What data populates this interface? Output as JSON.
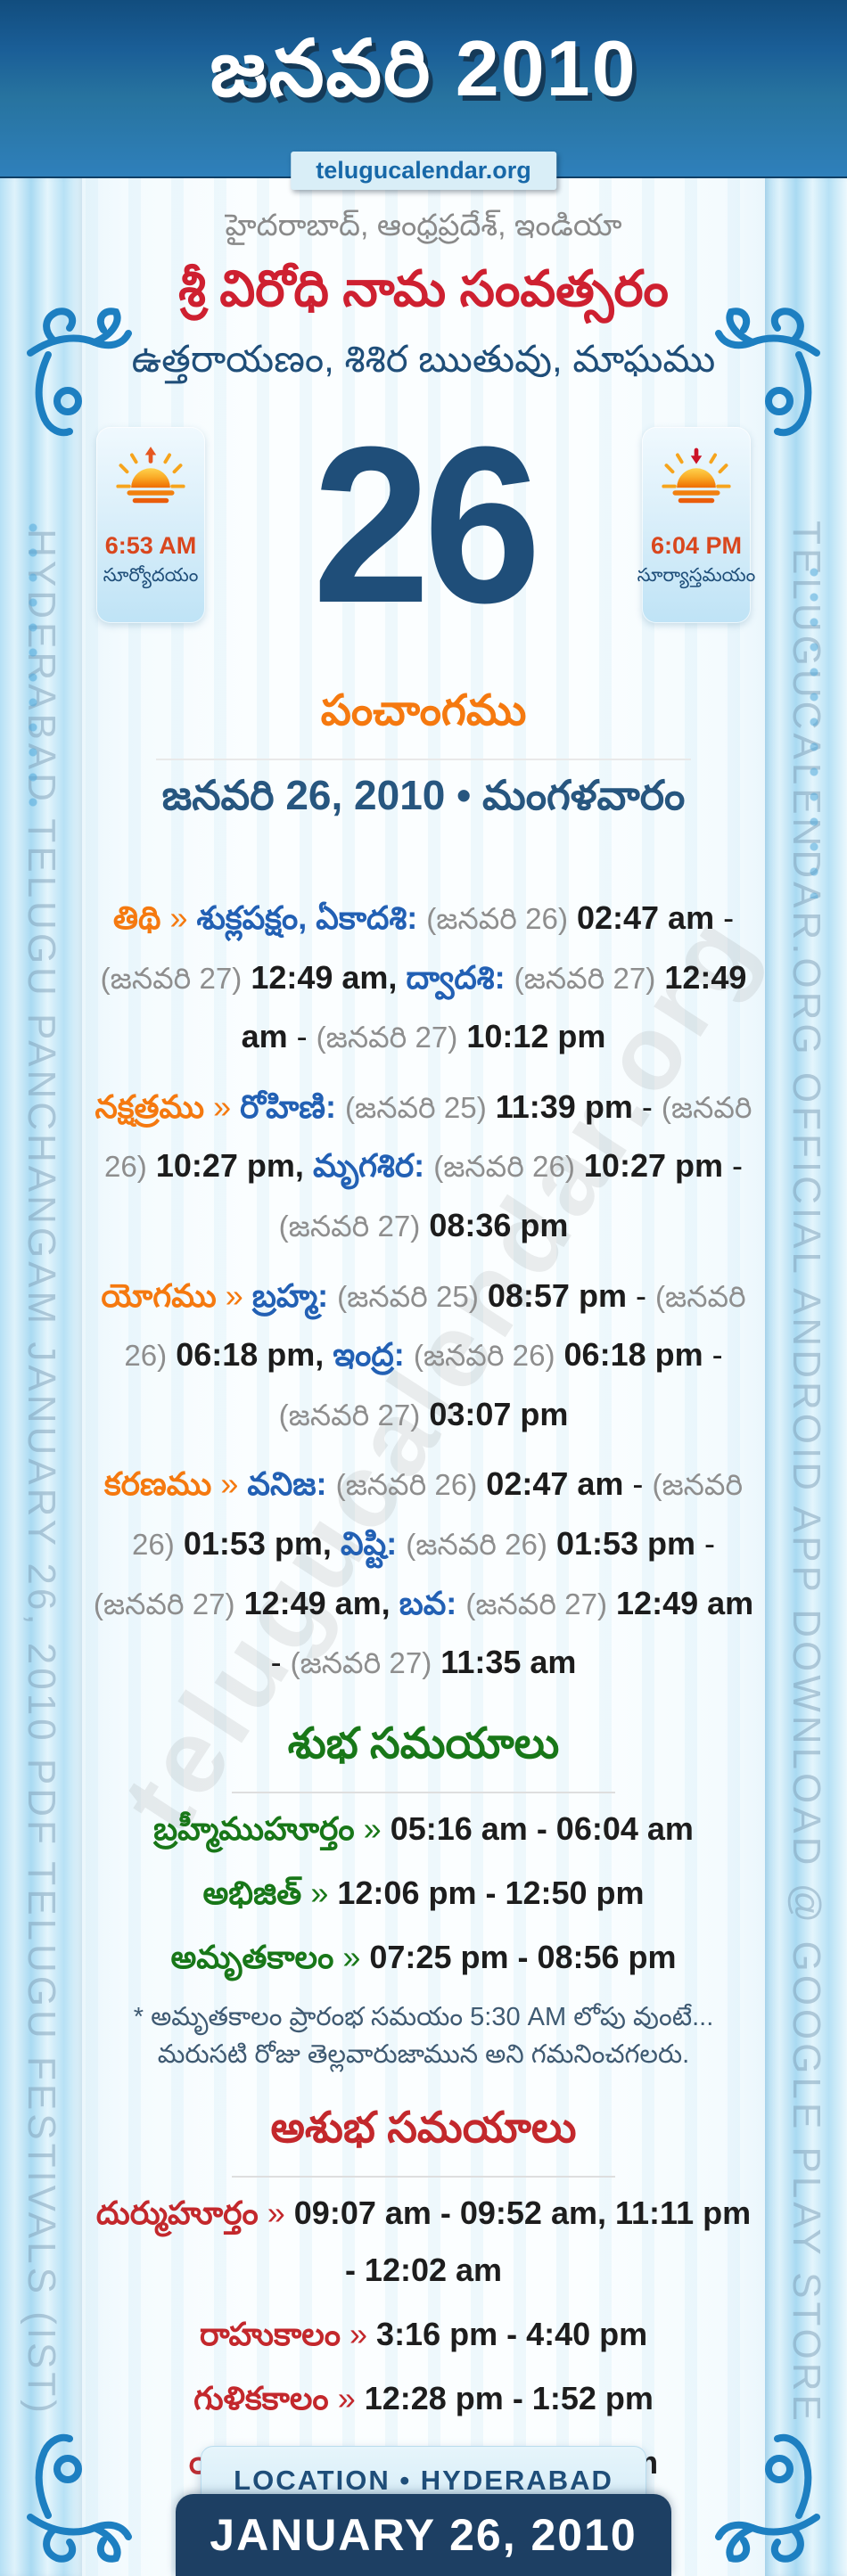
{
  "header": {
    "title": "జనవరి 2010",
    "badge": "telugucalendar.org"
  },
  "side_rails": {
    "left_text": "HYDERABAD TELUGU PANCHANGAM JANUARY 26, 2010 PDF TELUGU FESTIVALS (IST)",
    "right_text": "TELUGUCALENDAR.ORG OFFICIAL ANDROID APP DOWNLOAD @ GOOGLE PLAY STORE"
  },
  "watermark": "telugucalendar.org",
  "intro": {
    "location": "హైదరాబాద్, ఆంధ్రప్రదేశ్, ఇండియా",
    "samvatsaram": "శ్రీ విరోధి నామ సంవత్సరం",
    "ayanam": "ఉత్తరాయణం, శిశిర ఋతువు, మాఘము"
  },
  "day": {
    "number": "26",
    "sunrise_time": "6:53 AM",
    "sunrise_label": "సూర్యోదయం",
    "sunset_time": "6:04 PM",
    "sunset_label": "సూర్యాస్తమయం"
  },
  "panchangam": {
    "title": "పంచాంగము",
    "date_line": "జనవరి 26, 2010 • మంగళవారం",
    "sections": [
      {
        "label": "తిథి",
        "sep": "»",
        "segments": [
          {
            "t": "n",
            "x": "శుక్లపక్షం, ఏకాదశి:"
          },
          {
            "t": "g",
            "x": "(జనవరి 26)"
          },
          {
            "t": "b",
            "x": "02:47 am"
          },
          {
            "t": "p",
            "x": "-"
          },
          {
            "t": "g",
            "x": "(జనవరి 27)"
          },
          {
            "t": "b",
            "x": "12:49 am,"
          },
          {
            "t": "n",
            "x": "ద్వాదశి:"
          },
          {
            "t": "g",
            "x": "(జనవరి 27)"
          },
          {
            "t": "b",
            "x": "12:49 am"
          },
          {
            "t": "p",
            "x": "-"
          },
          {
            "t": "g",
            "x": "(జనవరి 27)"
          },
          {
            "t": "b",
            "x": "10:12 pm"
          }
        ]
      },
      {
        "label": "నక్షత్రము",
        "sep": "»",
        "segments": [
          {
            "t": "n",
            "x": "రోహిణి:"
          },
          {
            "t": "g",
            "x": "(జనవరి 25)"
          },
          {
            "t": "b",
            "x": "11:39 pm"
          },
          {
            "t": "p",
            "x": "-"
          },
          {
            "t": "g",
            "x": "(జనవరి 26)"
          },
          {
            "t": "b",
            "x": "10:27 pm,"
          },
          {
            "t": "n",
            "x": "మృగశిర:"
          },
          {
            "t": "g",
            "x": "(జనవరి 26)"
          },
          {
            "t": "b",
            "x": "10:27 pm"
          },
          {
            "t": "p",
            "x": "-"
          },
          {
            "t": "g",
            "x": "(జనవరి 27)"
          },
          {
            "t": "b",
            "x": "08:36 pm"
          }
        ]
      },
      {
        "label": "యోగము",
        "sep": "»",
        "segments": [
          {
            "t": "n",
            "x": "బ్రహ్మ:"
          },
          {
            "t": "g",
            "x": "(జనవరి 25)"
          },
          {
            "t": "b",
            "x": "08:57 pm"
          },
          {
            "t": "p",
            "x": "-"
          },
          {
            "t": "g",
            "x": "(జనవరి 26)"
          },
          {
            "t": "b",
            "x": "06:18 pm,"
          },
          {
            "t": "n",
            "x": "ఇంద్ర:"
          },
          {
            "t": "g",
            "x": "(జనవరి 26)"
          },
          {
            "t": "b",
            "x": "06:18 pm"
          },
          {
            "t": "p",
            "x": "-"
          },
          {
            "t": "g",
            "x": "(జనవరి 27)"
          },
          {
            "t": "b",
            "x": "03:07 pm"
          }
        ]
      },
      {
        "label": "కరణము",
        "sep": "»",
        "segments": [
          {
            "t": "n",
            "x": "వనిజ:"
          },
          {
            "t": "g",
            "x": "(జనవరి 26)"
          },
          {
            "t": "b",
            "x": "02:47 am"
          },
          {
            "t": "p",
            "x": "-"
          },
          {
            "t": "g",
            "x": "(జనవరి 26)"
          },
          {
            "t": "b",
            "x": "01:53 pm,"
          },
          {
            "t": "n",
            "x": "విష్టి:"
          },
          {
            "t": "g",
            "x": "(జనవరి 26)"
          },
          {
            "t": "b",
            "x": "01:53 pm"
          },
          {
            "t": "p",
            "x": "-"
          },
          {
            "t": "g",
            "x": "(జనవరి 27)"
          },
          {
            "t": "b",
            "x": "12:49 am,"
          },
          {
            "t": "n",
            "x": "బవ:"
          },
          {
            "t": "g",
            "x": "(జనవరి 27)"
          },
          {
            "t": "b",
            "x": "12:49 am"
          },
          {
            "t": "p",
            "x": "-"
          },
          {
            "t": "g",
            "x": "(జనవరి 27)"
          },
          {
            "t": "b",
            "x": "11:35 am"
          }
        ]
      }
    ]
  },
  "shubha": {
    "title": "శుభ సమయాలు",
    "entries": [
      {
        "label": "బ్రహ్మీముహూర్తం",
        "sep": "»",
        "value": "05:16 am - 06:04 am"
      },
      {
        "label": "అభిజిత్",
        "sep": "»",
        "value": "12:06 pm - 12:50 pm"
      },
      {
        "label": "అమృతకాలం",
        "sep": "»",
        "value": "07:25 pm - 08:56 pm"
      }
    ],
    "note": "* అమృతకాలం ప్రారంభ సమయం 5:30 AM లోపు వుంటే... మరుసటి రోజు తెల్లవారుజామున అని గమనించగలరు."
  },
  "ashubha": {
    "title": "అశుభ సమయాలు",
    "entries": [
      {
        "label": "దుర్ముహూర్తం",
        "sep": "»",
        "value": "09:07 am - 09:52 am, 11:11 pm - 12:02 am"
      },
      {
        "label": "రాహుకాలం",
        "sep": "»",
        "value": "3:16 pm - 4:40 pm"
      },
      {
        "label": "గుళికకాలం",
        "sep": "»",
        "value": "12:28 pm - 1:52 pm"
      },
      {
        "label": "యమగండం",
        "sep": "»",
        "value": "9:40 am - 11:04 am"
      }
    ]
  },
  "footer": {
    "location_line": "LOCATION • HYDERABAD",
    "date_line": "JANUARY 26, 2010"
  },
  "colors": {
    "header_blue": "#1a5e97",
    "navy": "#1f4e79",
    "orange": "#f5790f",
    "name_blue": "#2260b4",
    "red": "#c3282c",
    "green": "#187718",
    "year_red": "#ce2030",
    "sun_time_red": "#d9471e",
    "rail_blue": "#b5e0f5"
  }
}
